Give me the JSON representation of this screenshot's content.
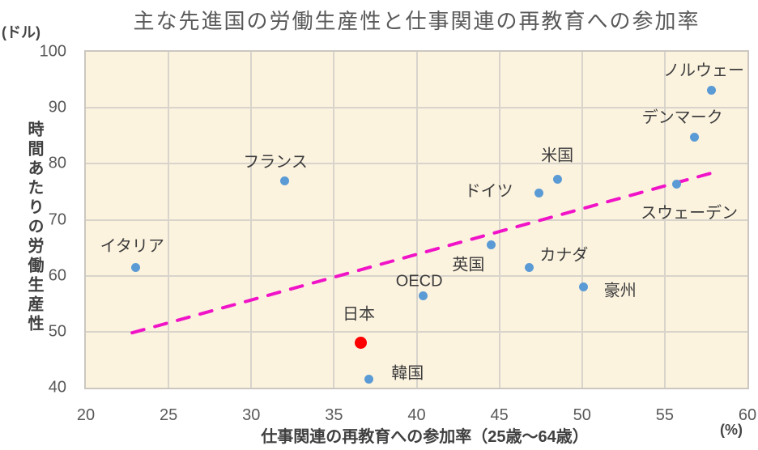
{
  "chart_data": {
    "type": "scatter",
    "title": "主な先進国の労働生産性と仕事関連の再教育への参加率",
    "xlabel": "仕事関連の再教育への参加率（25歳〜64歳）",
    "ylabel": "時間あたりの労働生産性",
    "x_unit": "(%)",
    "y_unit": "(ドル)",
    "xlim": [
      20,
      60
    ],
    "ylim": [
      40,
      100
    ],
    "x_ticks": [
      20,
      25,
      30,
      35,
      40,
      45,
      50,
      55,
      60
    ],
    "y_ticks": [
      40,
      50,
      60,
      70,
      80,
      90,
      100
    ],
    "grid": true,
    "legend": "none",
    "point_color": "#5B9BD5",
    "point_size": 11,
    "highlight_color": "#FF0000",
    "highlight_size": 15,
    "points": [
      {
        "label": "イタリア",
        "x": 23,
        "y": 61.5,
        "highlight": false,
        "label_offset": [
          -4,
          -28
        ]
      },
      {
        "label": "フランス",
        "x": 32,
        "y": 77,
        "highlight": false,
        "label_offset": [
          -11,
          -25
        ]
      },
      {
        "label": "ドイツ",
        "x": 47.4,
        "y": 74.7,
        "highlight": false,
        "label_offset": [
          -62,
          -5
        ]
      },
      {
        "label": "米国",
        "x": 48.5,
        "y": 77.3,
        "highlight": false,
        "label_offset": [
          0,
          -31
        ]
      },
      {
        "label": "英国",
        "x": 44.5,
        "y": 65.5,
        "highlight": false,
        "label_offset": [
          -28,
          22
        ]
      },
      {
        "label": "カナダ",
        "x": 46.8,
        "y": 61.5,
        "highlight": false,
        "label_offset": [
          43,
          -17
        ]
      },
      {
        "label": "OECD",
        "x": 40.4,
        "y": 56.4,
        "highlight": false,
        "label_offset": [
          -5,
          -18
        ]
      },
      {
        "label": "豪州",
        "x": 50.1,
        "y": 58,
        "highlight": false,
        "label_offset": [
          45,
          2
        ]
      },
      {
        "label": "日本",
        "x": 36.6,
        "y": 48,
        "highlight": true,
        "label_offset": [
          -2,
          -38
        ]
      },
      {
        "label": "韓国",
        "x": 37.1,
        "y": 41.5,
        "highlight": false,
        "label_offset": [
          48,
          -10
        ]
      },
      {
        "label": "スウェーデン",
        "x": 55.7,
        "y": 76.3,
        "highlight": false,
        "label_offset": [
          16,
          33
        ]
      },
      {
        "label": "デンマーク",
        "x": 56.8,
        "y": 84.7,
        "highlight": false,
        "label_offset": [
          -15,
          -27
        ]
      },
      {
        "label": "ノルウェー",
        "x": 57.8,
        "y": 93.1,
        "highlight": false,
        "label_offset": [
          -9,
          -27
        ]
      }
    ],
    "trendline": {
      "x1": 22.8,
      "y1": 49.8,
      "x2": 57.9,
      "y2": 78.4,
      "color": "#F013C7",
      "style": "dashed"
    }
  },
  "colors": {
    "plot_background": "#FCF3DF",
    "gridline": "#D8D4CC",
    "axis_text": "#595959",
    "label_text": "#3C3C3C"
  }
}
